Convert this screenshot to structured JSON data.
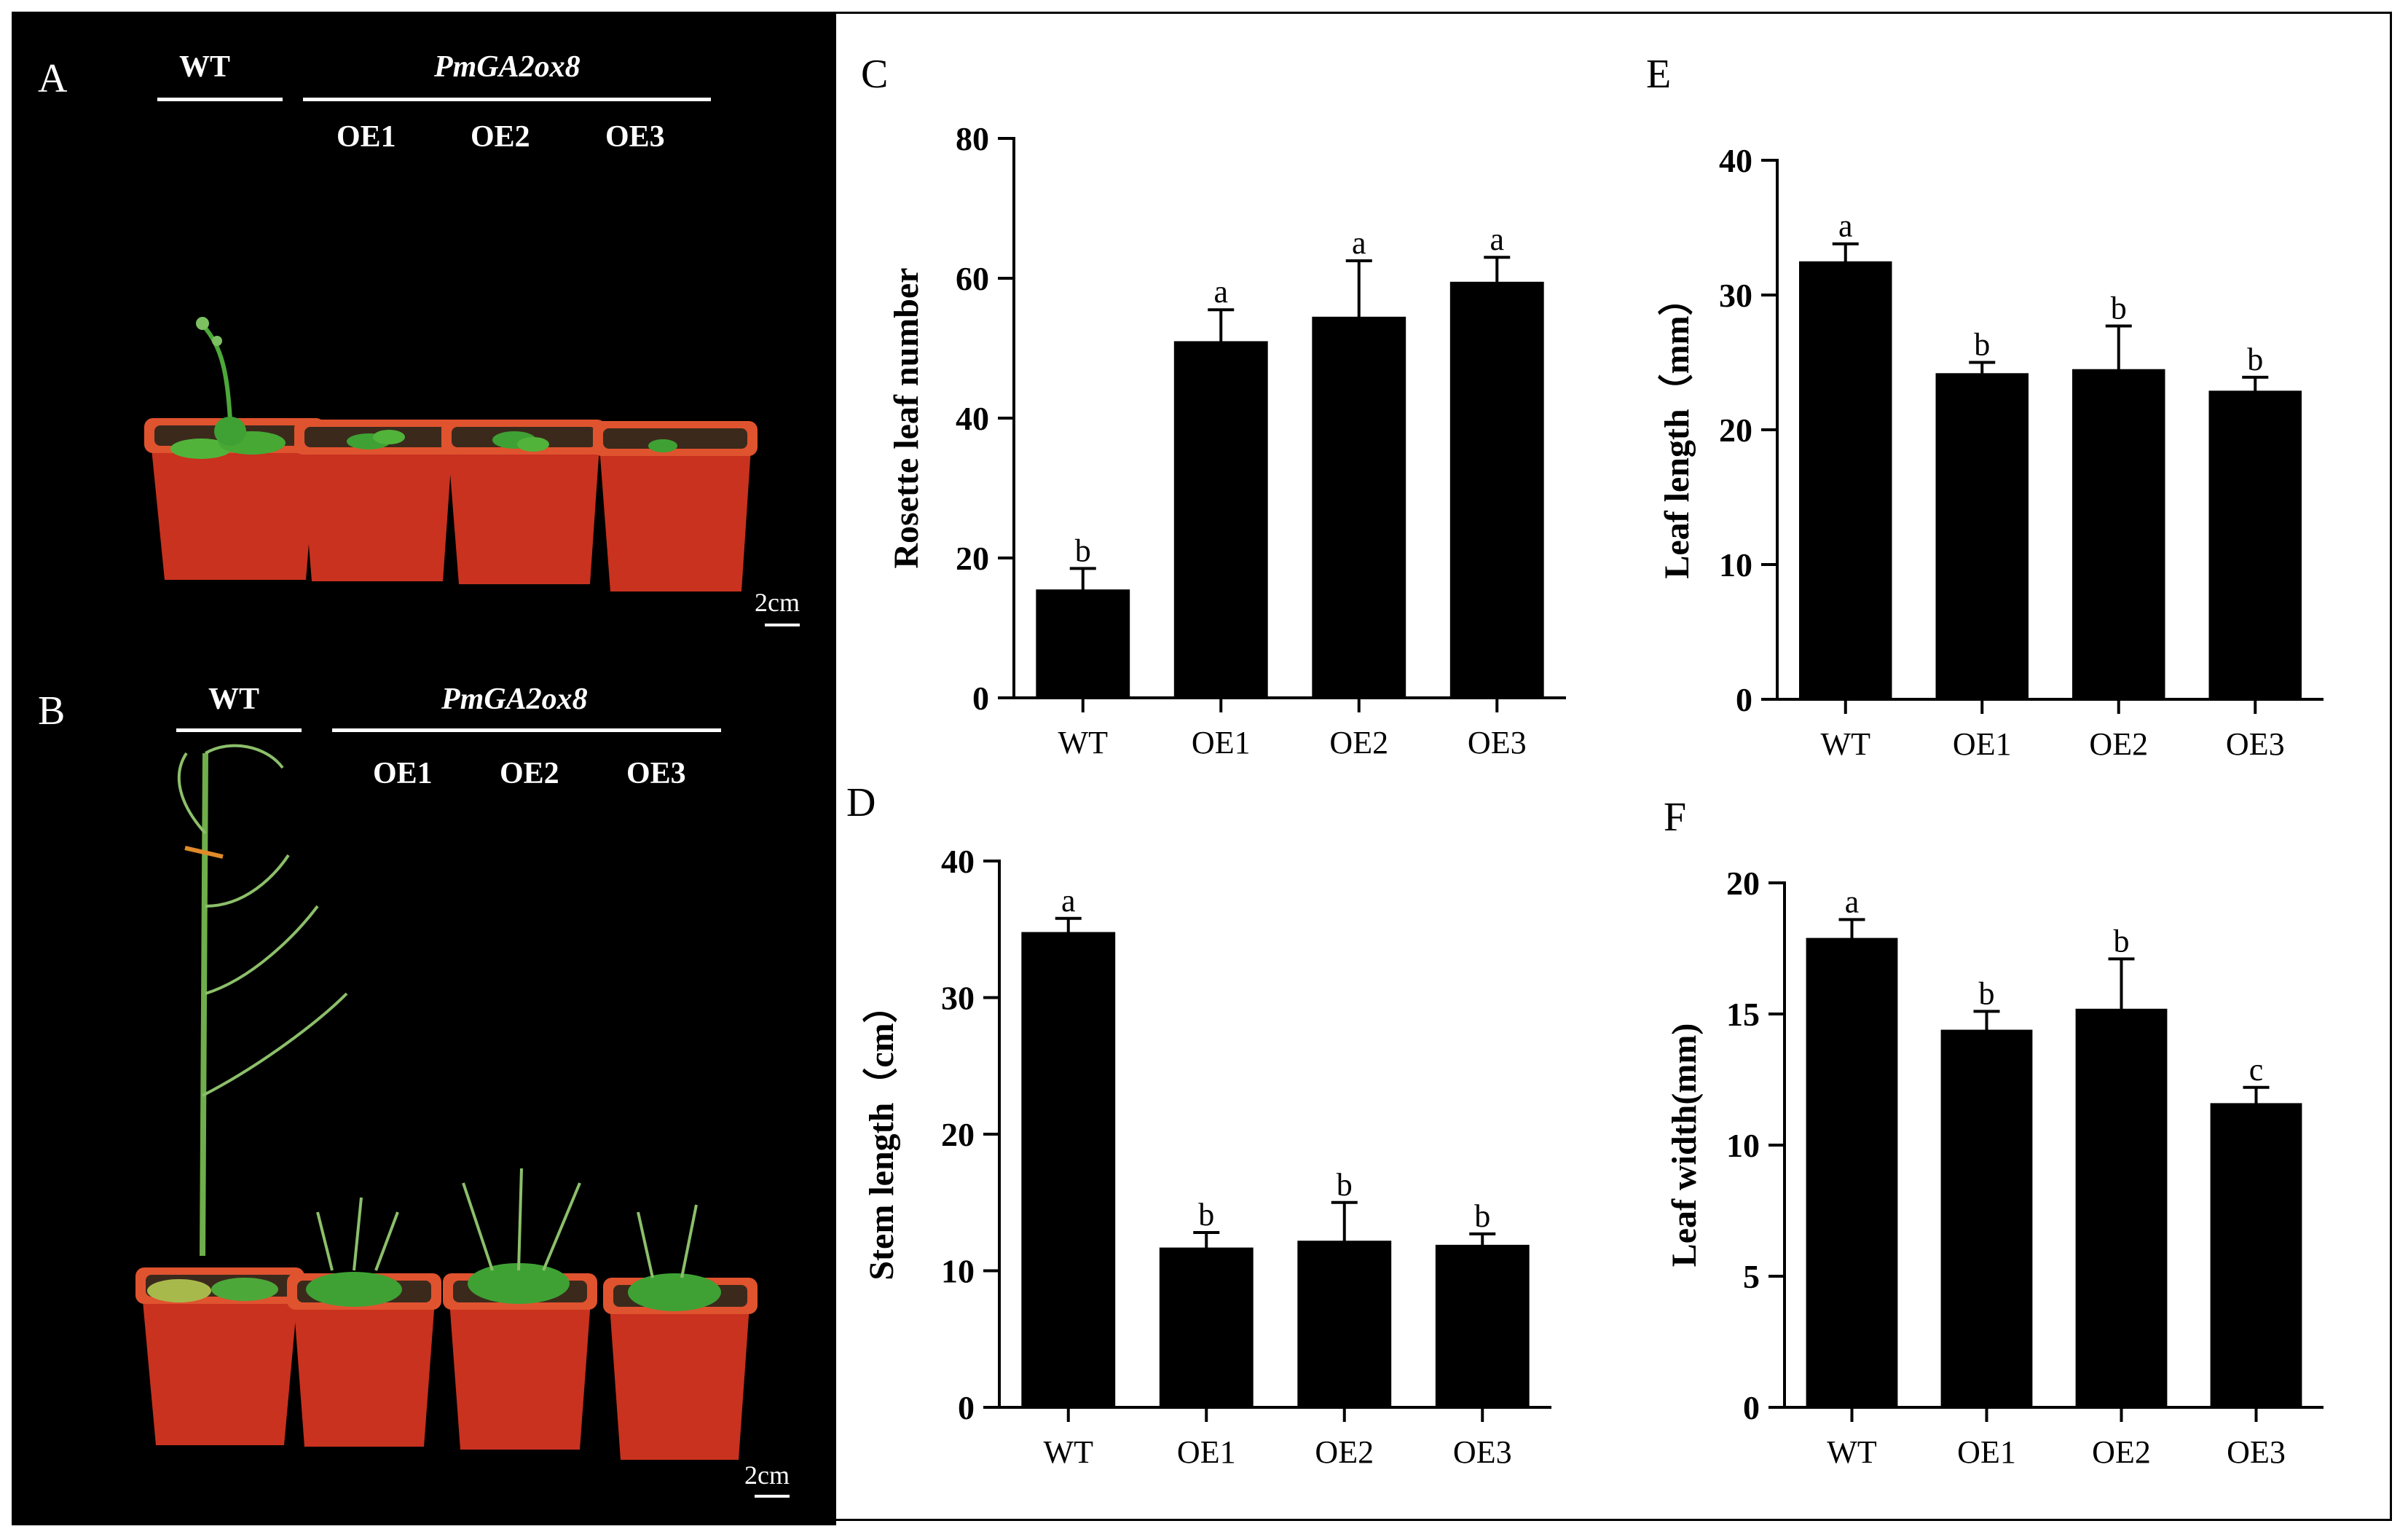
{
  "photo_panels": [
    {
      "letter": "A",
      "wt_label": "WT",
      "gene_label": "PmGA2ox8",
      "lines": [
        "OE1",
        "OE2",
        "OE3"
      ],
      "scale": "2cm"
    },
    {
      "letter": "B",
      "wt_label": "WT",
      "gene_label": "PmGA2ox8",
      "lines": [
        "OE1",
        "OE2",
        "OE3"
      ],
      "scale": "2cm"
    }
  ],
  "colors": {
    "bar": "#000000",
    "pot": "#c8321f",
    "pot_rim": "#e0532f",
    "soil": "#3b2a1c",
    "leaf": "#3fa134"
  },
  "chart_data": [
    {
      "panel": "C",
      "type": "bar",
      "categories": [
        "WT",
        "OE1",
        "OE2",
        "OE3"
      ],
      "values": [
        15.5,
        51,
        54.5,
        59.5
      ],
      "errors": [
        3,
        4.5,
        8,
        3.5
      ],
      "letters": [
        "b",
        "a",
        "a",
        "a"
      ],
      "ylabel": "Rosette leaf number",
      "ylim": [
        0,
        80
      ],
      "yticks": [
        0,
        20,
        40,
        60,
        80
      ]
    },
    {
      "panel": "E",
      "type": "bar",
      "categories": [
        "WT",
        "OE1",
        "OE2",
        "OE3"
      ],
      "values": [
        32.5,
        24.2,
        24.5,
        22.9
      ],
      "errors": [
        1.3,
        0.8,
        3.2,
        1.0
      ],
      "letters": [
        "a",
        "b",
        "b",
        "b"
      ],
      "ylabel": "Leaf length（mm）",
      "ylim": [
        0,
        40
      ],
      "yticks": [
        0,
        10,
        20,
        30,
        40
      ]
    },
    {
      "panel": "D",
      "type": "bar",
      "categories": [
        "WT",
        "OE1",
        "OE2",
        "OE3"
      ],
      "values": [
        34.8,
        11.7,
        12.2,
        11.9
      ],
      "errors": [
        1.0,
        1.1,
        2.8,
        0.8
      ],
      "letters": [
        "a",
        "b",
        "b",
        "b"
      ],
      "ylabel": "Stem length（cm）",
      "ylim": [
        0,
        40
      ],
      "yticks": [
        0,
        10,
        20,
        30,
        40
      ]
    },
    {
      "panel": "F",
      "type": "bar",
      "categories": [
        "WT",
        "OE1",
        "OE2",
        "OE3"
      ],
      "values": [
        17.9,
        14.4,
        15.2,
        11.6
      ],
      "errors": [
        0.7,
        0.7,
        1.9,
        0.6
      ],
      "letters": [
        "a",
        "b",
        "b",
        "c"
      ],
      "ylabel": "Leaf width(mm)",
      "ylim": [
        0,
        20
      ],
      "yticks": [
        0,
        5,
        10,
        15,
        20
      ]
    }
  ]
}
